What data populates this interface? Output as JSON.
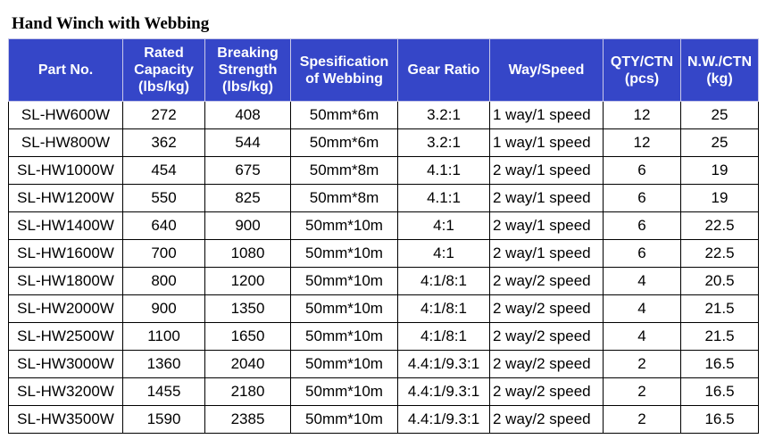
{
  "title": "Hand Winch with Webbing",
  "table": {
    "header": [
      "Part No.",
      "Rated\nCapacity\n(lbs/kg)",
      "Breaking\nStrength\n(lbs/kg)",
      "Spesification\nof Webbing",
      "Gear Ratio",
      "Way/Speed",
      "QTY/CTN\n(pcs)",
      "N.W./CTN\n(kg)"
    ],
    "rows": [
      [
        "SL-HW600W",
        272,
        408,
        "50mm*6m",
        "3.2:1",
        "1 way/1 speed",
        12,
        25
      ],
      [
        "SL-HW800W",
        362,
        544,
        "50mm*6m",
        "3.2:1",
        "1 way/1 speed",
        12,
        25
      ],
      [
        "SL-HW1000W",
        454,
        675,
        "50mm*8m",
        "4.1:1",
        "2 way/1 speed",
        6,
        19
      ],
      [
        "SL-HW1200W",
        550,
        825,
        "50mm*8m",
        "4.1:1",
        "2 way/1 speed",
        6,
        19
      ],
      [
        "SL-HW1400W",
        640,
        900,
        "50mm*10m",
        "4:1",
        "2 way/1 speed",
        6,
        22.5
      ],
      [
        "SL-HW1600W",
        700,
        1080,
        "50mm*10m",
        "4:1",
        "2 way/1 speed",
        6,
        22.5
      ],
      [
        "SL-HW1800W",
        800,
        1200,
        "50mm*10m",
        "4:1/8:1",
        "2 way/2 speed",
        4,
        20.5
      ],
      [
        "SL-HW2000W",
        900,
        1350,
        "50mm*10m",
        "4:1/8:1",
        "2 way/2 speed",
        4,
        21.5
      ],
      [
        "SL-HW2500W",
        1100,
        1650,
        "50mm*10m",
        "4:1/8:1",
        "2 way/2 speed",
        4,
        21.5
      ],
      [
        "SL-HW3000W",
        1360,
        2040,
        "50mm*10m",
        "4.4:1/9.3:1",
        "2 way/2 speed",
        2,
        16.5
      ],
      [
        "SL-HW3200W",
        1455,
        2180,
        "50mm*10m",
        "4.4:1/9.3:1",
        "2 way/2 speed",
        2,
        16.5
      ],
      [
        "SL-HW3500W",
        1590,
        2385,
        "50mm*10m",
        "4.4:1/9.3:1",
        "2 way/2 speed",
        2,
        16.5
      ]
    ]
  }
}
